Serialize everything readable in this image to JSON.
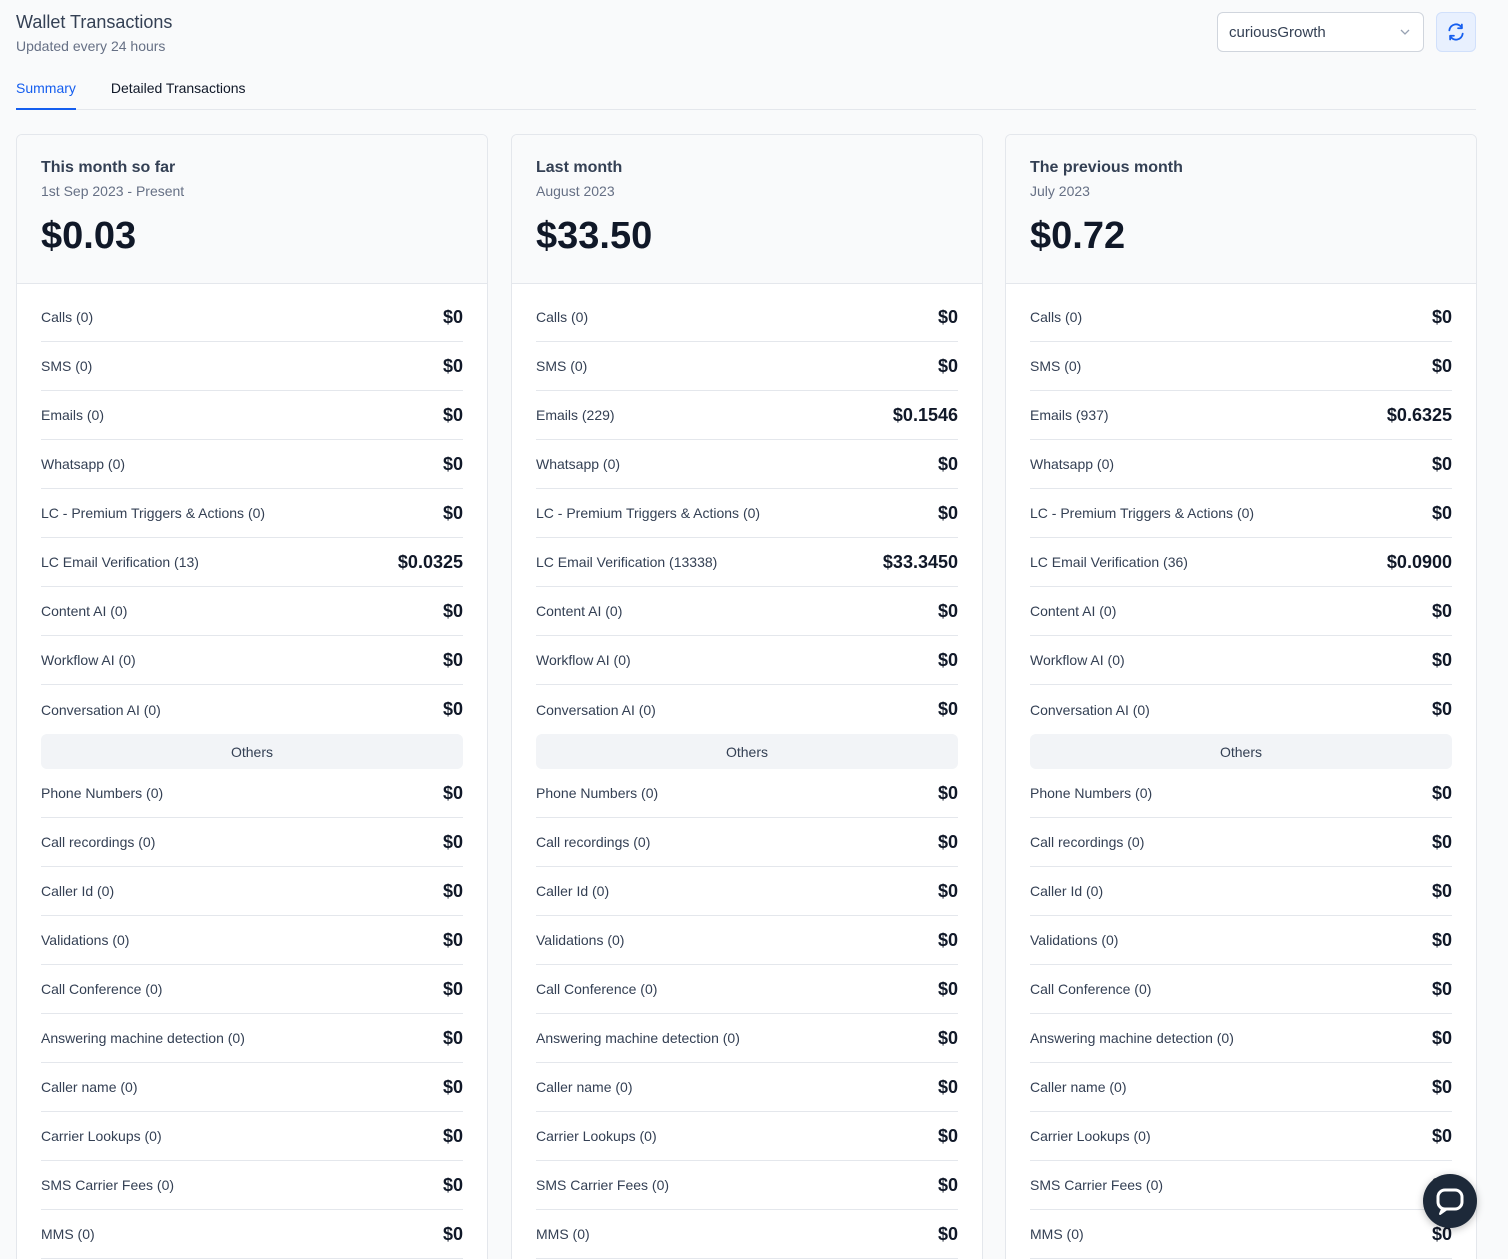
{
  "header": {
    "title": "Wallet Transactions",
    "subtitle": "Updated every 24 hours"
  },
  "account_select": {
    "value": "curiousGrowth"
  },
  "tabs": [
    {
      "label": "Summary",
      "active": true
    },
    {
      "label": "Detailed Transactions",
      "active": false
    }
  ],
  "others_label": "Others",
  "cards": [
    {
      "title": "This month so far",
      "period": "1st Sep 2023 - Present",
      "total": "$0.03",
      "items": [
        {
          "label": "Calls (0)",
          "value": "$0"
        },
        {
          "label": "SMS (0)",
          "value": "$0"
        },
        {
          "label": "Emails (0)",
          "value": "$0"
        },
        {
          "label": "Whatsapp (0)",
          "value": "$0"
        },
        {
          "label": "LC - Premium Triggers & Actions (0)",
          "value": "$0"
        },
        {
          "label": "LC Email Verification (13)",
          "value": "$0.0325"
        },
        {
          "label": "Content AI (0)",
          "value": "$0"
        },
        {
          "label": "Workflow AI (0)",
          "value": "$0"
        },
        {
          "label": "Conversation AI (0)",
          "value": "$0"
        }
      ],
      "others": [
        {
          "label": "Phone Numbers (0)",
          "value": "$0"
        },
        {
          "label": "Call recordings (0)",
          "value": "$0"
        },
        {
          "label": "Caller Id (0)",
          "value": "$0"
        },
        {
          "label": "Validations (0)",
          "value": "$0"
        },
        {
          "label": "Call Conference (0)",
          "value": "$0"
        },
        {
          "label": "Answering machine detection (0)",
          "value": "$0"
        },
        {
          "label": "Caller name (0)",
          "value": "$0"
        },
        {
          "label": "Carrier Lookups (0)",
          "value": "$0"
        },
        {
          "label": "SMS Carrier Fees (0)",
          "value": "$0"
        },
        {
          "label": "MMS (0)",
          "value": "$0"
        }
      ]
    },
    {
      "title": "Last month",
      "period": "August 2023",
      "total": "$33.50",
      "items": [
        {
          "label": "Calls (0)",
          "value": "$0"
        },
        {
          "label": "SMS (0)",
          "value": "$0"
        },
        {
          "label": "Emails (229)",
          "value": "$0.1546"
        },
        {
          "label": "Whatsapp (0)",
          "value": "$0"
        },
        {
          "label": "LC - Premium Triggers & Actions (0)",
          "value": "$0"
        },
        {
          "label": "LC Email Verification (13338)",
          "value": "$33.3450"
        },
        {
          "label": "Content AI (0)",
          "value": "$0"
        },
        {
          "label": "Workflow AI (0)",
          "value": "$0"
        },
        {
          "label": "Conversation AI (0)",
          "value": "$0"
        }
      ],
      "others": [
        {
          "label": "Phone Numbers (0)",
          "value": "$0"
        },
        {
          "label": "Call recordings (0)",
          "value": "$0"
        },
        {
          "label": "Caller Id (0)",
          "value": "$0"
        },
        {
          "label": "Validations (0)",
          "value": "$0"
        },
        {
          "label": "Call Conference (0)",
          "value": "$0"
        },
        {
          "label": "Answering machine detection (0)",
          "value": "$0"
        },
        {
          "label": "Caller name (0)",
          "value": "$0"
        },
        {
          "label": "Carrier Lookups (0)",
          "value": "$0"
        },
        {
          "label": "SMS Carrier Fees (0)",
          "value": "$0"
        },
        {
          "label": "MMS (0)",
          "value": "$0"
        }
      ]
    },
    {
      "title": "The previous month",
      "period": "July 2023",
      "total": "$0.72",
      "items": [
        {
          "label": "Calls (0)",
          "value": "$0"
        },
        {
          "label": "SMS (0)",
          "value": "$0"
        },
        {
          "label": "Emails (937)",
          "value": "$0.6325"
        },
        {
          "label": "Whatsapp (0)",
          "value": "$0"
        },
        {
          "label": "LC - Premium Triggers & Actions (0)",
          "value": "$0"
        },
        {
          "label": "LC Email Verification (36)",
          "value": "$0.0900"
        },
        {
          "label": "Content AI (0)",
          "value": "$0"
        },
        {
          "label": "Workflow AI (0)",
          "value": "$0"
        },
        {
          "label": "Conversation AI (0)",
          "value": "$0"
        }
      ],
      "others": [
        {
          "label": "Phone Numbers (0)",
          "value": "$0"
        },
        {
          "label": "Call recordings (0)",
          "value": "$0"
        },
        {
          "label": "Caller Id (0)",
          "value": "$0"
        },
        {
          "label": "Validations (0)",
          "value": "$0"
        },
        {
          "label": "Call Conference (0)",
          "value": "$0"
        },
        {
          "label": "Answering machine detection (0)",
          "value": "$0"
        },
        {
          "label": "Caller name (0)",
          "value": "$0"
        },
        {
          "label": "Carrier Lookups (0)",
          "value": "$0"
        },
        {
          "label": "SMS Carrier Fees (0)",
          "value": "$0"
        },
        {
          "label": "MMS (0)",
          "value": "$0"
        }
      ]
    }
  ],
  "icons": {
    "dropdown": "chevron-down-icon",
    "refresh": "refresh-icon",
    "chat": "chat-icon"
  },
  "colors": {
    "accent": "#155eef",
    "text": "#101828",
    "muted": "#667085",
    "border": "#e4e7ec"
  }
}
